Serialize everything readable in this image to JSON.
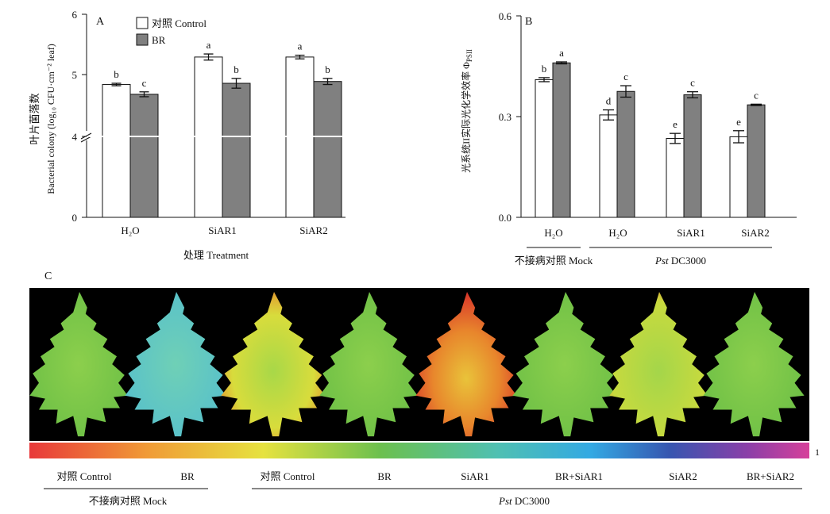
{
  "panels": {
    "A": {
      "letter": "A",
      "ylabel_cn": "叶片菌落数",
      "ylabel_en": "Bacterial colony (log₁₀ CFU·cm⁻² leaf)",
      "xlabel": "处理 Treatment",
      "legend": [
        {
          "label": "对照 Control",
          "color": "#ffffff"
        },
        {
          "label": "BR",
          "color": "#808080"
        }
      ]
    },
    "B": {
      "letter": "B",
      "ylabel": "光系统II实际光化学效率 Φ",
      "ylabel_sub": "PSII",
      "group_mock": "不接病对照 Mock",
      "group_pst": "DC3000",
      "group_pst_italic": "Pst"
    },
    "C": {
      "letter": "C",
      "scale_max": "1",
      "leaf_labels": [
        "对照 Control",
        "BR",
        "对照 Control",
        "BR",
        "SiAR1",
        "BR+SiAR1",
        "SiAR2",
        "BR+SiAR2"
      ],
      "group_mock": "不接病对照 Mock",
      "group_pst_italic": "Pst",
      "group_pst": "DC3000"
    }
  },
  "chart_data": [
    {
      "type": "bar",
      "panel": "A",
      "categories": [
        "H₂O",
        "SiAR1",
        "SiAR2"
      ],
      "series": [
        {
          "name": "对照 Control",
          "values": [
            4.85,
            5.3,
            5.3
          ],
          "errors": [
            0.02,
            0.05,
            0.03
          ],
          "letters": [
            "b",
            "a",
            "a"
          ]
        },
        {
          "name": "BR",
          "values": [
            4.69,
            4.87,
            4.9
          ],
          "errors": [
            0.04,
            0.08,
            0.05
          ],
          "letters": [
            "c",
            "b",
            "b"
          ]
        }
      ],
      "yticks": [
        "0",
        "4",
        "5",
        "6"
      ],
      "ylim": [
        0,
        6
      ],
      "y_break": "axis broken between 0 and 4",
      "grid": false,
      "legend_position": "top-left"
    },
    {
      "type": "bar",
      "panel": "B",
      "categories": [
        "H₂O",
        "H₂O",
        "SiAR1",
        "SiAR2"
      ],
      "series": [
        {
          "values": [
            0.41,
            0.305,
            0.235,
            0.24
          ],
          "errors": [
            0.006,
            0.015,
            0.015,
            0.018
          ],
          "letters": [
            "b",
            "d",
            "e",
            "e"
          ]
        },
        {
          "values": [
            0.46,
            0.375,
            0.365,
            0.335
          ],
          "errors": [
            0.003,
            0.017,
            0.009,
            0.002
          ],
          "letters": [
            "a",
            "c",
            "c",
            "c"
          ]
        }
      ],
      "yticks": [
        "0.0",
        "0.3",
        "0.6"
      ],
      "ylim": [
        0,
        0.6
      ],
      "grid": false
    }
  ]
}
